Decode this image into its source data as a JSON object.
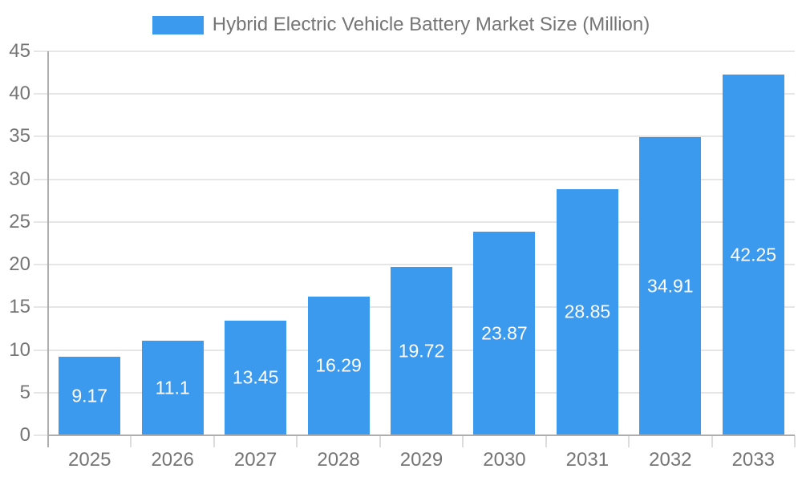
{
  "legend": {
    "label": "Hybrid Electric Vehicle Battery Market Size (Million)"
  },
  "chart_data": {
    "type": "bar",
    "title": "Hybrid Electric Vehicle Battery Market Size (Million)",
    "categories": [
      "2025",
      "2026",
      "2027",
      "2028",
      "2029",
      "2030",
      "2031",
      "2032",
      "2033"
    ],
    "values": [
      9.17,
      11.1,
      13.45,
      16.29,
      19.72,
      23.87,
      28.85,
      34.91,
      42.25
    ],
    "value_labels": [
      "9.17",
      "11.1",
      "13.45",
      "16.29",
      "19.72",
      "23.87",
      "28.85",
      "34.91",
      "42.25"
    ],
    "xlabel": "",
    "ylabel": "",
    "ylim": [
      0,
      45
    ],
    "ytick_step": 5,
    "ytick_labels": [
      "0",
      "5",
      "10",
      "15",
      "20",
      "25",
      "30",
      "35",
      "40",
      "45"
    ],
    "grid": true,
    "legend_position": "top",
    "value_label_position": "center-inside",
    "colors": {
      "bar": "#3b99ee",
      "axis_text": "#757575",
      "grid_line": "#e6e6e6",
      "axis_line": "#aeaeae",
      "x_tick_line": "#dcdcdc",
      "value_label_text": "#ffffff",
      "background": "#ffffff"
    }
  }
}
